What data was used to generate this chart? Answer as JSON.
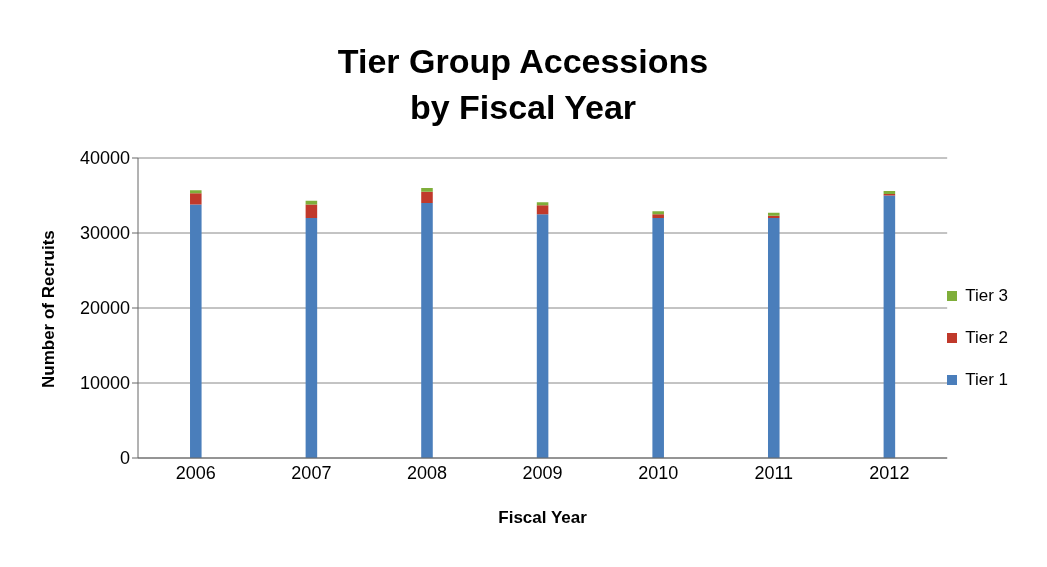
{
  "chart_data": {
    "type": "bar",
    "title": "Tier Group Accessions\nby Fiscal Year",
    "xlabel": "Fiscal Year",
    "ylabel": "Number of Recruits",
    "categories": [
      "2006",
      "2007",
      "2008",
      "2009",
      "2010",
      "2011",
      "2012"
    ],
    "stacked": true,
    "series": [
      {
        "name": "Tier 1",
        "color": "#4a7ebb",
        "values": [
          33800,
          32000,
          34000,
          32500,
          32000,
          32000,
          35000
        ]
      },
      {
        "name": "Tier 2",
        "color": "#c0392b",
        "values": [
          1500,
          1800,
          1500,
          1200,
          500,
          300,
          200
        ]
      },
      {
        "name": "Tier 3",
        "color": "#7fae3a",
        "values": [
          400,
          500,
          500,
          400,
          400,
          400,
          400
        ]
      }
    ],
    "ylim": [
      0,
      40000
    ],
    "yticks": [
      0,
      10000,
      20000,
      30000,
      40000
    ],
    "grid": "y",
    "legend": "right"
  }
}
